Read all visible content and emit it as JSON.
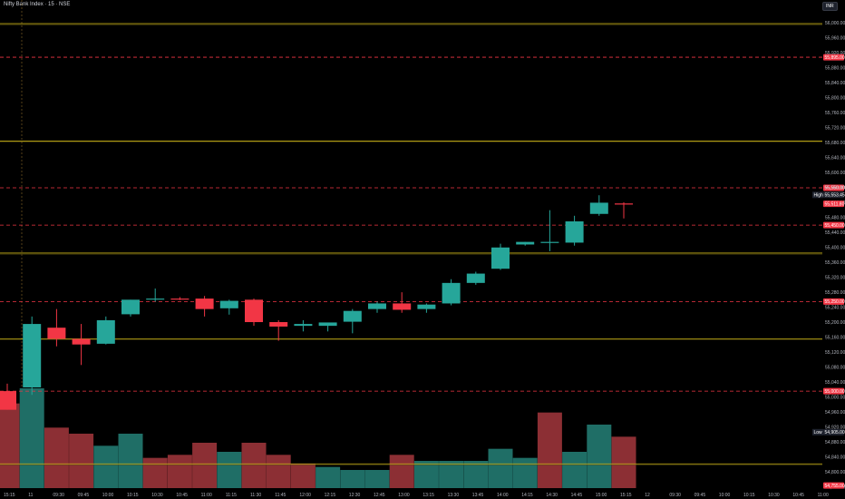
{
  "header": {
    "title": "Nifty Bank Index · 15 · NSE",
    "currency": "INR"
  },
  "colors": {
    "up": "#26a69a",
    "down": "#f23645",
    "yellow_line": "#c9b217",
    "red_line": "#f23645",
    "vol_up": "#1f6e66",
    "vol_down": "#8c2f34"
  },
  "chart_data": {
    "type": "candlestick",
    "title": "Nifty Bank Index · 15 · NSE",
    "y_ticks": [
      "56,000.00",
      "55,960.00",
      "55,920.00",
      "55,880.00",
      "55,840.00",
      "55,800.00",
      "55,760.00",
      "55,720.00",
      "55,680.00",
      "55,640.00",
      "55,600.00",
      "55,560.00",
      "55,520.00",
      "55,480.00",
      "55,440.00",
      "55,400.00",
      "55,360.00",
      "55,320.00",
      "55,280.00",
      "55,240.00",
      "55,200.00",
      "55,160.00",
      "55,120.00",
      "55,080.00",
      "55,040.00",
      "55,000.00",
      "54,960.00",
      "54,920.00",
      "54,880.00",
      "54,840.00",
      "54,800.00",
      "54,760.00"
    ],
    "x_ticks": [
      "15:15",
      "11",
      "09:30",
      "09:45",
      "10:00",
      "10:15",
      "10:30",
      "10:45",
      "11:00",
      "11:15",
      "11:30",
      "11:45",
      "12:00",
      "12:15",
      "12:30",
      "12:45",
      "13:00",
      "13:15",
      "13:30",
      "13:45",
      "14:00",
      "14:15",
      "14:30",
      "14:45",
      "15:00",
      "15:15",
      "12",
      "09:30",
      "09:45",
      "10:00",
      "10:15",
      "10:30",
      "10:45",
      "11:00"
    ],
    "ylim": [
      54750,
      56000
    ],
    "candles": [
      {
        "t": "15:15",
        "o": 55010,
        "h": 55030,
        "l": 54960,
        "c": 54960
      },
      {
        "t": "09:15",
        "o": 55020,
        "h": 55210,
        "l": 55000,
        "c": 55190
      },
      {
        "t": "09:30",
        "o": 55180,
        "h": 55230,
        "l": 55130,
        "c": 55150
      },
      {
        "t": "09:45",
        "o": 55150,
        "h": 55190,
        "l": 55080,
        "c": 55135
      },
      {
        "t": "10:00",
        "o": 55137,
        "h": 55210,
        "l": 55135,
        "c": 55200
      },
      {
        "t": "10:15",
        "o": 55216,
        "h": 55255,
        "l": 55210,
        "c": 55255
      },
      {
        "t": "10:30",
        "o": 55258,
        "h": 55285,
        "l": 55250,
        "c": 55258
      },
      {
        "t": "10:45",
        "o": 55258,
        "h": 55262,
        "l": 55254,
        "c": 55256
      },
      {
        "t": "11:00",
        "o": 55258,
        "h": 55265,
        "l": 55210,
        "c": 55230
      },
      {
        "t": "11:15",
        "o": 55232,
        "h": 55255,
        "l": 55215,
        "c": 55252
      },
      {
        "t": "11:30",
        "o": 55255,
        "h": 55258,
        "l": 55185,
        "c": 55195
      },
      {
        "t": "11:45",
        "o": 55195,
        "h": 55200,
        "l": 55145,
        "c": 55183
      },
      {
        "t": "12:00",
        "o": 55185,
        "h": 55200,
        "l": 55170,
        "c": 55190
      },
      {
        "t": "12:15",
        "o": 55185,
        "h": 55190,
        "l": 55170,
        "c": 55194
      },
      {
        "t": "12:30",
        "o": 55196,
        "h": 55230,
        "l": 55165,
        "c": 55225
      },
      {
        "t": "12:45",
        "o": 55230,
        "h": 55250,
        "l": 55220,
        "c": 55245
      },
      {
        "t": "13:00",
        "o": 55245,
        "h": 55275,
        "l": 55220,
        "c": 55228
      },
      {
        "t": "13:15",
        "o": 55230,
        "h": 55245,
        "l": 55220,
        "c": 55242
      },
      {
        "t": "13:30",
        "o": 55245,
        "h": 55310,
        "l": 55240,
        "c": 55300
      },
      {
        "t": "13:45",
        "o": 55300,
        "h": 55330,
        "l": 55295,
        "c": 55325
      },
      {
        "t": "14:00",
        "o": 55338,
        "h": 55405,
        "l": 55335,
        "c": 55395
      },
      {
        "t": "14:15",
        "o": 55403,
        "h": 55410,
        "l": 55400,
        "c": 55410
      },
      {
        "t": "14:30",
        "o": 55410,
        "h": 55495,
        "l": 55385,
        "c": 55410
      },
      {
        "t": "14:45",
        "o": 55408,
        "h": 55480,
        "l": 55400,
        "c": 55465
      },
      {
        "t": "15:00",
        "o": 55485,
        "h": 55535,
        "l": 55480,
        "c": 55515
      },
      {
        "t": "15:15",
        "o": 55513,
        "h": 55516,
        "l": 55473,
        "c": 55512
      }
    ],
    "volume": [
      {
        "t": "15:15",
        "v": 0.28,
        "dir": "down"
      },
      {
        "t": "09:15",
        "v": 0.33,
        "dir": "up"
      },
      {
        "t": "09:30",
        "v": 0.2,
        "dir": "down"
      },
      {
        "t": "09:45",
        "v": 0.18,
        "dir": "down"
      },
      {
        "t": "10:00",
        "v": 0.14,
        "dir": "up"
      },
      {
        "t": "10:15",
        "v": 0.18,
        "dir": "up"
      },
      {
        "t": "10:30",
        "v": 0.1,
        "dir": "down"
      },
      {
        "t": "10:45",
        "v": 0.11,
        "dir": "down"
      },
      {
        "t": "11:00",
        "v": 0.15,
        "dir": "down"
      },
      {
        "t": "11:15",
        "v": 0.12,
        "dir": "up"
      },
      {
        "t": "11:30",
        "v": 0.15,
        "dir": "down"
      },
      {
        "t": "11:45",
        "v": 0.11,
        "dir": "down"
      },
      {
        "t": "12:00",
        "v": 0.08,
        "dir": "down"
      },
      {
        "t": "12:15",
        "v": 0.07,
        "dir": "up"
      },
      {
        "t": "12:30",
        "v": 0.06,
        "dir": "up"
      },
      {
        "t": "12:45",
        "v": 0.06,
        "dir": "up"
      },
      {
        "t": "13:00",
        "v": 0.11,
        "dir": "down"
      },
      {
        "t": "13:15",
        "v": 0.09,
        "dir": "up"
      },
      {
        "t": "13:30",
        "v": 0.09,
        "dir": "up"
      },
      {
        "t": "13:45",
        "v": 0.09,
        "dir": "up"
      },
      {
        "t": "14:00",
        "v": 0.13,
        "dir": "up"
      },
      {
        "t": "14:15",
        "v": 0.1,
        "dir": "up"
      },
      {
        "t": "14:30",
        "v": 0.25,
        "dir": "down"
      },
      {
        "t": "14:45",
        "v": 0.12,
        "dir": "up"
      },
      {
        "t": "15:00",
        "v": 0.21,
        "dir": "up"
      },
      {
        "t": "15:15",
        "v": 0.17,
        "dir": "down"
      }
    ],
    "h_lines": [
      {
        "price": 55995,
        "style": "yellow"
      },
      {
        "price": 55905,
        "style": "red",
        "label": "55,895.00"
      },
      {
        "price": 55680,
        "style": "yellow"
      },
      {
        "price": 55555,
        "style": "red",
        "label": "55,550.00"
      },
      {
        "price": 55455,
        "style": "red",
        "label": "55,450.00"
      },
      {
        "price": 55380,
        "style": "yellow"
      },
      {
        "price": 55250,
        "style": "red",
        "label": "55,250.00"
      },
      {
        "price": 55150,
        "style": "yellow"
      },
      {
        "price": 55010,
        "style": "red",
        "label": "55,000.00"
      },
      {
        "price": 54815,
        "style": "yellow"
      }
    ],
    "markers": [
      {
        "label": "High",
        "value": "55,553.45",
        "price": 55536,
        "color": "#1e222d"
      },
      {
        "label": "",
        "value": "55,511.80",
        "price": 55512,
        "color": "#f23645"
      },
      {
        "label": "Low",
        "value": "54,905.00",
        "price": 54900,
        "color": "#1e222d"
      },
      {
        "label": "",
        "value": "54,755.00",
        "price": 54757,
        "color": "#f23645"
      }
    ]
  }
}
